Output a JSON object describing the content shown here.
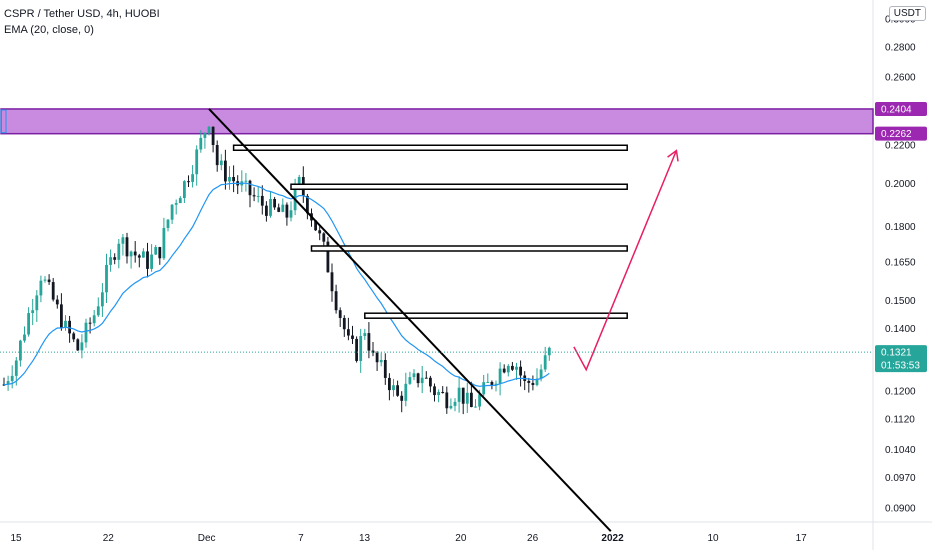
{
  "header": {
    "title": "CSPR / Tether USD, 4h, HUOBI",
    "indicator": "EMA (20, close, 0)",
    "currency_button": "USDT"
  },
  "colors": {
    "up": "#26a69a",
    "down": "#131722",
    "ema": "#2196f3",
    "zone_fill": "#c98be0",
    "zone_border": "#7b1fa2",
    "zone_label_bg": "#9c27b0",
    "price_label_bg": "#26a69a",
    "arrow": "#e91e63",
    "trendline": "#000000"
  },
  "price_labels": {
    "last_price": "0.1321",
    "countdown": "01:53:53",
    "zone_top": "0.2404",
    "zone_bottom": "0.2262"
  },
  "chart_data": {
    "type": "candlestick",
    "title": "CSPR / Tether USD, 4h, HUOBI",
    "x_ticks": [
      "15",
      "22",
      "Dec",
      "7",
      "13",
      "20",
      "26",
      "2022",
      "10",
      "17"
    ],
    "y_ticks": [
      "0.3000",
      "0.2800",
      "0.2600",
      "0.2200",
      "0.2000",
      "0.1800",
      "0.1650",
      "0.1500",
      "0.1400",
      "0.1200",
      "0.1120",
      "0.1040",
      "0.0970",
      "0.0900"
    ],
    "y_scale": "log",
    "close_path": [
      [
        0,
        0.122
      ],
      [
        3,
        0.13
      ],
      [
        6,
        0.145
      ],
      [
        9,
        0.16
      ],
      [
        12,
        0.15
      ],
      [
        15,
        0.14
      ],
      [
        18,
        0.133
      ],
      [
        22,
        0.145
      ],
      [
        25,
        0.16
      ],
      [
        28,
        0.175
      ],
      [
        32,
        0.168
      ],
      [
        35,
        0.165
      ],
      [
        38,
        0.17
      ],
      [
        41,
        0.19
      ],
      [
        44,
        0.2
      ],
      [
        47,
        0.215
      ],
      [
        50,
        0.235
      ],
      [
        52,
        0.21
      ],
      [
        54,
        0.205
      ],
      [
        57,
        0.2
      ],
      [
        60,
        0.195
      ],
      [
        63,
        0.19
      ],
      [
        66,
        0.187
      ],
      [
        69,
        0.185
      ],
      [
        72,
        0.2
      ],
      [
        75,
        0.185
      ],
      [
        78,
        0.17
      ],
      [
        81,
        0.15
      ],
      [
        84,
        0.135
      ],
      [
        86,
        0.132
      ],
      [
        88,
        0.14
      ],
      [
        90,
        0.13
      ],
      [
        93,
        0.125
      ],
      [
        96,
        0.118
      ],
      [
        99,
        0.122
      ],
      [
        102,
        0.125
      ],
      [
        105,
        0.12
      ],
      [
        108,
        0.118
      ],
      [
        111,
        0.12
      ],
      [
        114,
        0.115
      ],
      [
        117,
        0.12
      ],
      [
        120,
        0.125
      ],
      [
        123,
        0.13
      ],
      [
        125,
        0.128
      ],
      [
        127,
        0.122
      ],
      [
        130,
        0.124
      ],
      [
        133,
        0.132
      ]
    ],
    "zone": {
      "top": 0.2404,
      "bottom": 0.2262
    },
    "resistance_boxes": [
      {
        "value": 0.2185,
        "from": 56,
        "to": 152
      },
      {
        "value": 0.1985,
        "from": 70,
        "to": 152
      },
      {
        "value": 0.1705,
        "from": 75,
        "to": 152
      },
      {
        "value": 0.1445,
        "from": 88,
        "to": 152
      }
    ],
    "trendline": [
      {
        "x": 50,
        "y": 0.2404
      },
      {
        "x": 148,
        "y": 0.085
      }
    ],
    "projection": [
      {
        "x": 139,
        "y": 0.1338
      },
      {
        "x": 142,
        "y": 0.1265
      },
      {
        "x": 164,
        "y": 0.217
      }
    ],
    "last_price": 0.1321,
    "ema": {
      "period": 20,
      "source": "close",
      "offset": 0
    }
  }
}
